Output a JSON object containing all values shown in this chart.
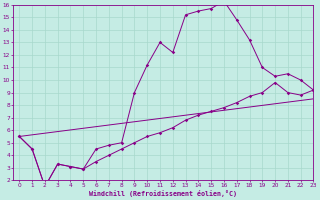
{
  "xlabel": "Windchill (Refroidissement éolien,°C)",
  "xlim": [
    -0.5,
    23
  ],
  "ylim": [
    2,
    16
  ],
  "xticks": [
    0,
    1,
    2,
    3,
    4,
    5,
    6,
    7,
    8,
    9,
    10,
    11,
    12,
    13,
    14,
    15,
    16,
    17,
    18,
    19,
    20,
    21,
    22,
    23
  ],
  "yticks": [
    2,
    3,
    4,
    5,
    6,
    7,
    8,
    9,
    10,
    11,
    12,
    13,
    14,
    15,
    16
  ],
  "background_color": "#c5ece4",
  "line_color": "#880088",
  "grid_color": "#a8d8cc",
  "line1_x": [
    0,
    1,
    2,
    3,
    4,
    5,
    6,
    7,
    8,
    9,
    10,
    11,
    12,
    13,
    14,
    15,
    16,
    17,
    18,
    19,
    20,
    21,
    22,
    23
  ],
  "line1_y": [
    5.5,
    4.5,
    1.5,
    3.3,
    3.1,
    2.9,
    4.5,
    4.8,
    5.0,
    9.0,
    11.2,
    13.0,
    12.2,
    15.2,
    15.5,
    15.7,
    16.3,
    14.8,
    13.2,
    11.0,
    10.3,
    10.5,
    10.0,
    9.2
  ],
  "line2_x": [
    0,
    1,
    2,
    3,
    4,
    5,
    6,
    7,
    8,
    9,
    10,
    11,
    12,
    13,
    14,
    15,
    16,
    17,
    18,
    19,
    20,
    21,
    22,
    23
  ],
  "line2_y": [
    5.5,
    4.5,
    1.5,
    3.3,
    3.1,
    2.9,
    3.5,
    4.0,
    4.5,
    5.0,
    5.5,
    5.8,
    6.2,
    6.8,
    7.2,
    7.5,
    7.8,
    8.2,
    8.7,
    9.0,
    9.8,
    9.0,
    8.8,
    9.2
  ],
  "line3_x": [
    0,
    23
  ],
  "line3_y": [
    5.5,
    8.5
  ],
  "marker": "D",
  "marker_size": 1.8,
  "linewidth": 0.7
}
